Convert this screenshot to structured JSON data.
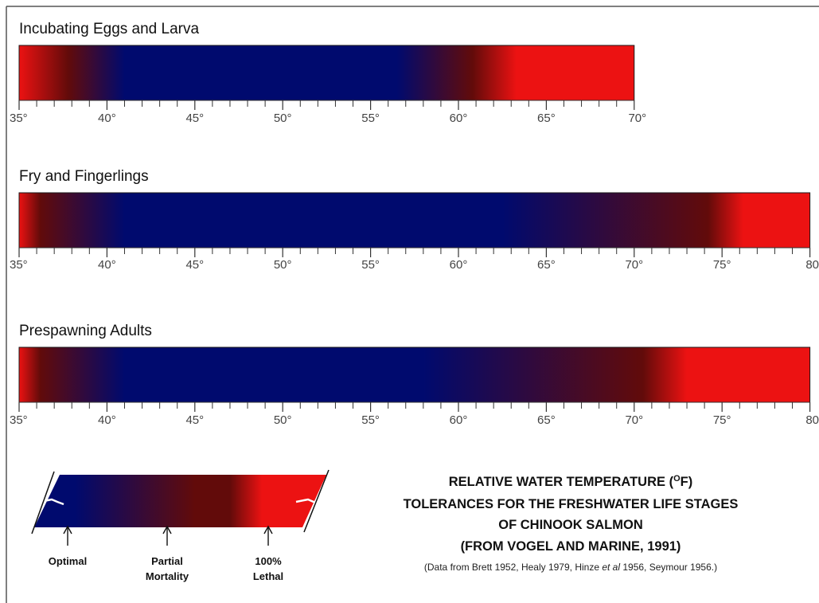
{
  "chart_data": {
    "type": "heatmap",
    "title": "RELATIVE WATER TEMPERATURE (OF) TOLERANCES FOR THE FRESHWATER LIFE STAGES OF CHINOOK SALMON (FROM VOGEL AND MARINE, 1991)",
    "title_lines": [
      {
        "text": "RELATIVE WATER TEMPERATURE (",
        "sup": "O",
        "after": "F)"
      },
      {
        "text": "TOLERANCES FOR THE FRESHWATER LIFE STAGES"
      },
      {
        "text": "OF CHINOOK SALMON"
      },
      {
        "text": "(FROM VOGEL AND MARINE, 1991)"
      }
    ],
    "source_note": {
      "before": "(Data from Brett 1952, Healy 1979, Hinze ",
      "italic": "et al",
      "after": " 1956, Seymour 1956.)"
    },
    "xlabel": "",
    "ylabel": "",
    "colors": {
      "optimal": "#000a6e",
      "partial": "#620b0a",
      "lethal": "#ec1212"
    },
    "stages": [
      {
        "name": "Incubating Eggs and Larva",
        "xlim": [
          35,
          70
        ],
        "tick_labels": [
          "35°",
          "40°",
          "45°",
          "50°",
          "55°",
          "60°",
          "65°",
          "70°"
        ],
        "tick_values": [
          35,
          40,
          45,
          50,
          55,
          60,
          65,
          70
        ],
        "gradient": [
          {
            "temp": 35,
            "zone": "lethal"
          },
          {
            "temp": 37.8,
            "zone": "partial"
          },
          {
            "temp": 41,
            "zone": "optimal"
          },
          {
            "temp": 56.5,
            "zone": "optimal"
          },
          {
            "temp": 60.8,
            "zone": "partial"
          },
          {
            "temp": 63.3,
            "zone": "lethal"
          },
          {
            "temp": 70,
            "zone": "lethal"
          }
        ]
      },
      {
        "name": "Fry and Fingerlings",
        "xlim": [
          35,
          80
        ],
        "tick_labels": [
          "35°",
          "40°",
          "45°",
          "50°",
          "55°",
          "60°",
          "65°",
          "70°",
          "75°",
          "80"
        ],
        "tick_values": [
          35,
          40,
          45,
          50,
          55,
          60,
          65,
          70,
          75,
          80
        ],
        "gradient": [
          {
            "temp": 35,
            "zone": "lethal"
          },
          {
            "temp": 36.2,
            "zone": "partial"
          },
          {
            "temp": 41,
            "zone": "optimal"
          },
          {
            "temp": 62.5,
            "zone": "optimal"
          },
          {
            "temp": 74.2,
            "zone": "partial"
          },
          {
            "temp": 76.2,
            "zone": "lethal"
          },
          {
            "temp": 80,
            "zone": "lethal"
          }
        ]
      },
      {
        "name": "Prespawning Adults",
        "xlim": [
          35,
          80
        ],
        "tick_labels": [
          "35°",
          "40°",
          "45°",
          "50°",
          "55°",
          "60°",
          "65°",
          "70°",
          "75°",
          "80"
        ],
        "tick_values": [
          35,
          40,
          45,
          50,
          55,
          60,
          65,
          70,
          75,
          80
        ],
        "gradient": [
          {
            "temp": 35,
            "zone": "lethal"
          },
          {
            "temp": 36.2,
            "zone": "partial"
          },
          {
            "temp": 41,
            "zone": "optimal"
          },
          {
            "temp": 58,
            "zone": "optimal"
          },
          {
            "temp": 70.5,
            "zone": "partial"
          },
          {
            "temp": 73,
            "zone": "lethal"
          },
          {
            "temp": 80,
            "zone": "lethal"
          }
        ]
      }
    ],
    "legend": {
      "placement": "bottom-left",
      "entries": [
        {
          "zone": "optimal",
          "lines": [
            "Optimal"
          ]
        },
        {
          "zone": "partial",
          "lines": [
            "Partial",
            "Mortality"
          ]
        },
        {
          "zone": "lethal",
          "lines": [
            "100%",
            "Lethal"
          ]
        }
      ]
    }
  }
}
